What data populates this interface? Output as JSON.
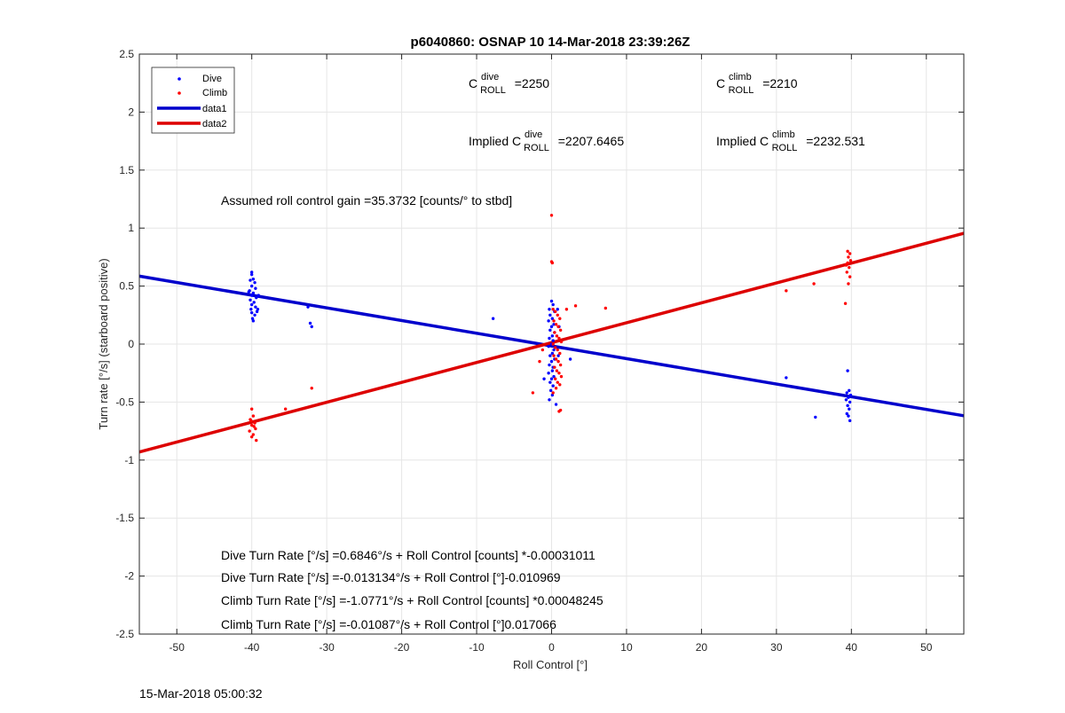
{
  "chart_data": {
    "type": "scatter",
    "title": "p6040860: OSNAP 10 14-Mar-2018 23:39:26Z",
    "xlabel": "Roll Control [°]",
    "ylabel": "Turn rate [°/s] (starboard positive)",
    "xlim": [
      -55,
      55
    ],
    "ylim": [
      -2.5,
      2.5
    ],
    "xticks": [
      "-50",
      "-40",
      "-30",
      "-20",
      "-10",
      "0",
      "10",
      "20",
      "30",
      "40",
      "50"
    ],
    "xtick_values": [
      -50,
      -40,
      -30,
      -20,
      -10,
      0,
      10,
      20,
      30,
      40,
      50
    ],
    "yticks": [
      "-2.5",
      "-2",
      "-1.5",
      "-1",
      "-0.5",
      "0",
      "0.5",
      "1",
      "1.5",
      "2",
      "2.5"
    ],
    "ytick_values": [
      -2.5,
      -2,
      -1.5,
      -1,
      -0.5,
      0,
      0.5,
      1,
      1.5,
      2,
      2.5
    ],
    "grid": true,
    "legend_position": "top-left",
    "legend": [
      {
        "label": "Dive",
        "style": "dot",
        "color": "#0000ff"
      },
      {
        "label": "Climb",
        "style": "dot",
        "color": "#ff0000"
      },
      {
        "label": "data1",
        "style": "line",
        "color": "#0000cc"
      },
      {
        "label": "data2",
        "style": "line",
        "color": "#dd0000"
      }
    ],
    "lines": [
      {
        "name": "data1",
        "color": "#0000cc",
        "x": [
          -55,
          55
        ],
        "y": [
          0.586,
          -0.618
        ]
      },
      {
        "name": "data2",
        "color": "#dd0000",
        "x": [
          -55,
          55
        ],
        "y": [
          -0.93,
          0.955
        ]
      }
    ],
    "series": [
      {
        "name": "Dive",
        "color": "#0000ff",
        "points": [
          [
            -40,
            0.62
          ],
          [
            -40,
            0.6
          ],
          [
            -39.8,
            0.56
          ],
          [
            -40.2,
            0.55
          ],
          [
            -39.6,
            0.53
          ],
          [
            -40,
            0.5
          ],
          [
            -39.5,
            0.48
          ],
          [
            -40.3,
            0.46
          ],
          [
            -39.8,
            0.44
          ],
          [
            -40,
            0.42
          ],
          [
            -39.4,
            0.4
          ],
          [
            -40.2,
            0.38
          ],
          [
            -39.7,
            0.36
          ],
          [
            -40,
            0.34
          ],
          [
            -39.5,
            0.32
          ],
          [
            -40.1,
            0.3
          ],
          [
            -39.3,
            0.28
          ],
          [
            -40,
            0.27
          ],
          [
            -39.6,
            0.25
          ],
          [
            -39.9,
            0.22
          ],
          [
            -39.8,
            0.2
          ],
          [
            -39.2,
            0.3
          ],
          [
            -40.4,
            0.45
          ],
          [
            -39.1,
            0.42
          ],
          [
            -32.5,
            0.32
          ],
          [
            -32.2,
            0.18
          ],
          [
            -32,
            0.15
          ],
          [
            -7.8,
            0.22
          ],
          [
            0,
            0.37
          ],
          [
            0.2,
            0.34
          ],
          [
            -0.3,
            0.3
          ],
          [
            0.4,
            0.28
          ],
          [
            -0.2,
            0.25
          ],
          [
            0.1,
            0.22
          ],
          [
            -0.4,
            0.2
          ],
          [
            0.3,
            0.17
          ],
          [
            0,
            0.15
          ],
          [
            -0.2,
            0.12
          ],
          [
            0.4,
            0.1
          ],
          [
            0.1,
            0.07
          ],
          [
            -0.3,
            0.05
          ],
          [
            0.2,
            0.03
          ],
          [
            0,
            0.0
          ],
          [
            -0.4,
            -0.02
          ],
          [
            0.3,
            -0.05
          ],
          [
            0.1,
            -0.08
          ],
          [
            -0.2,
            -0.1
          ],
          [
            0.4,
            -0.13
          ],
          [
            0,
            -0.15
          ],
          [
            -0.3,
            -0.18
          ],
          [
            0.2,
            -0.2
          ],
          [
            0.1,
            -0.23
          ],
          [
            -0.4,
            -0.25
          ],
          [
            0.3,
            -0.28
          ],
          [
            0,
            -0.3
          ],
          [
            -0.2,
            -0.33
          ],
          [
            0.2,
            -0.36
          ],
          [
            -0.1,
            -0.4
          ],
          [
            0.1,
            -0.44
          ],
          [
            -0.3,
            -0.48
          ],
          [
            0.6,
            -0.52
          ],
          [
            0.8,
            0.3
          ],
          [
            0.9,
            -0.1
          ],
          [
            1.0,
            0.15
          ],
          [
            2.5,
            -0.13
          ],
          [
            -1,
            -0.3
          ],
          [
            31.3,
            -0.29
          ],
          [
            35.2,
            -0.63
          ],
          [
            39.5,
            -0.23
          ],
          [
            39.7,
            -0.4
          ],
          [
            39.4,
            -0.42
          ],
          [
            39.6,
            -0.46
          ],
          [
            39.8,
            -0.5
          ],
          [
            39.5,
            -0.53
          ],
          [
            39.7,
            -0.56
          ],
          [
            39.4,
            -0.6
          ],
          [
            39.6,
            -0.62
          ],
          [
            39.8,
            -0.66
          ],
          [
            39.3,
            -0.48
          ],
          [
            39.9,
            -0.44
          ]
        ]
      },
      {
        "name": "Climb",
        "color": "#ff0000",
        "points": [
          [
            -40,
            -0.56
          ],
          [
            -39.8,
            -0.62
          ],
          [
            -40.2,
            -0.65
          ],
          [
            -39.6,
            -0.68
          ],
          [
            -40,
            -0.7
          ],
          [
            -39.5,
            -0.73
          ],
          [
            -40.3,
            -0.75
          ],
          [
            -39.8,
            -0.78
          ],
          [
            -40,
            -0.8
          ],
          [
            -39.4,
            -0.83
          ],
          [
            -40.1,
            -0.66
          ],
          [
            -39.7,
            -0.71
          ],
          [
            -35.5,
            -0.56
          ],
          [
            -32,
            -0.38
          ],
          [
            -2.5,
            -0.42
          ],
          [
            -1.6,
            -0.15
          ],
          [
            -1.2,
            -0.05
          ],
          [
            0,
            1.11
          ],
          [
            0,
            0.71
          ],
          [
            0.1,
            0.7
          ],
          [
            0.2,
            0.3
          ],
          [
            0.5,
            0.28
          ],
          [
            0.8,
            0.25
          ],
          [
            1.1,
            0.22
          ],
          [
            0.3,
            0.2
          ],
          [
            0.6,
            0.17
          ],
          [
            0.9,
            0.15
          ],
          [
            1.2,
            0.12
          ],
          [
            0.4,
            0.1
          ],
          [
            0.7,
            0.07
          ],
          [
            1.0,
            0.05
          ],
          [
            1.3,
            0.02
          ],
          [
            0.2,
            0.0
          ],
          [
            0.5,
            -0.03
          ],
          [
            0.8,
            -0.05
          ],
          [
            1.1,
            -0.08
          ],
          [
            0.3,
            -0.1
          ],
          [
            0.6,
            -0.13
          ],
          [
            0.9,
            -0.15
          ],
          [
            1.2,
            -0.18
          ],
          [
            0.4,
            -0.2
          ],
          [
            0.7,
            -0.23
          ],
          [
            1.0,
            -0.25
          ],
          [
            1.3,
            -0.28
          ],
          [
            0.5,
            -0.3
          ],
          [
            0.8,
            -0.33
          ],
          [
            1.1,
            -0.35
          ],
          [
            0.6,
            -0.38
          ],
          [
            0.2,
            -0.42
          ],
          [
            1.2,
            -0.57
          ],
          [
            1.0,
            -0.58
          ],
          [
            2.0,
            0.3
          ],
          [
            3.2,
            0.33
          ],
          [
            7.2,
            0.31
          ],
          [
            31.3,
            0.46
          ],
          [
            35.0,
            0.52
          ],
          [
            39.2,
            0.35
          ],
          [
            39.6,
            0.52
          ],
          [
            39.8,
            0.58
          ],
          [
            39.4,
            0.62
          ],
          [
            39.7,
            0.66
          ],
          [
            39.5,
            0.7
          ],
          [
            39.9,
            0.72
          ],
          [
            39.6,
            0.75
          ],
          [
            39.8,
            0.78
          ],
          [
            39.5,
            0.8
          ],
          [
            39.3,
            0.68
          ]
        ]
      }
    ],
    "annotations": {
      "c_roll_dive": {
        "prefix": "C",
        "sup": "dive",
        "sub": "ROLL",
        "value": "=2250"
      },
      "c_roll_climb": {
        "prefix": "C",
        "sup": "climb",
        "sub": "ROLL",
        "value": "=2210"
      },
      "implied_dive": {
        "prefix": "Implied C",
        "sup": "dive",
        "sub": "ROLL",
        "value": "=2207.6465"
      },
      "implied_climb": {
        "prefix": "Implied C",
        "sup": "climb",
        "sub": "ROLL",
        "value": "=2232.531"
      },
      "gain": "Assumed roll control gain =35.3732 [counts/° to stbd]",
      "fit1": "Dive Turn Rate [°/s] =0.6846°/s + Roll Control [counts] *-0.00031011",
      "fit2": "Dive Turn Rate [°/s] =-0.013134°/s + Roll Control [°]-0.010969",
      "fit3": "Climb Turn Rate [°/s] =-1.0771°/s + Roll Control [counts] *0.00048245",
      "fit4": "Climb Turn Rate [°/s] =-0.01087°/s + Roll Control [°]0.017066"
    },
    "footer": "15-Mar-2018 05:00:32"
  }
}
